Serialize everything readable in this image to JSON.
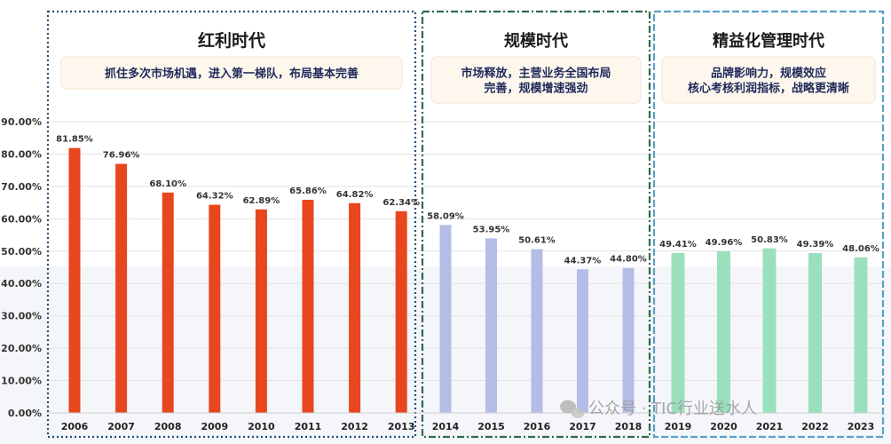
{
  "chart_data": {
    "type": "bar",
    "ylim": [
      0,
      90
    ],
    "yticks": [
      "0.00%",
      "10.00%",
      "20.00%",
      "30.00%",
      "40.00%",
      "50.00%",
      "60.00%",
      "70.00%",
      "80.00%",
      "90.00%"
    ],
    "grid": true,
    "periods": [
      {
        "title": "红利时代",
        "desc": [
          "抓住多次市场机遇，进入第一梯队，布局基本完善"
        ],
        "color": "#e8461f",
        "border_color": "#1f4e79",
        "categories": [
          "2006",
          "2007",
          "2008",
          "2009",
          "2010",
          "2011",
          "2012",
          "2013"
        ],
        "values": [
          81.85,
          76.96,
          68.1,
          64.32,
          62.89,
          65.86,
          64.82,
          62.34
        ],
        "labels": [
          "81.85%",
          "76.96%",
          "68.10%",
          "64.32%",
          "62.89%",
          "65.86%",
          "64.82%",
          "62.34%"
        ]
      },
      {
        "title": "规模时代",
        "desc": [
          "市场释放，主营业务全国布局",
          "完善，规模增速强劲"
        ],
        "color": "#b4bde6",
        "border_color": "#2e6b4a",
        "categories": [
          "2014",
          "2015",
          "2016",
          "2017",
          "2018"
        ],
        "values": [
          58.09,
          53.95,
          50.61,
          44.37,
          44.8
        ],
        "labels": [
          "58.09%",
          "53.95%",
          "50.61%",
          "44.37%",
          "44.80%"
        ]
      },
      {
        "title": "精益化管理时代",
        "desc": [
          "品牌影响力，规模效应",
          "核心考核利润指标，战略更清晰"
        ],
        "color": "#9be0bd",
        "border_color": "#5aa0c8",
        "categories": [
          "2019",
          "2020",
          "2021",
          "2022",
          "2023"
        ],
        "values": [
          49.41,
          49.96,
          50.83,
          49.39,
          48.06
        ],
        "labels": [
          "49.41%",
          "49.96%",
          "50.83%",
          "49.39%",
          "48.06%"
        ]
      }
    ]
  },
  "watermark": "公众号 · TIC行业送水人",
  "watermark_icon": "wechat-icon"
}
